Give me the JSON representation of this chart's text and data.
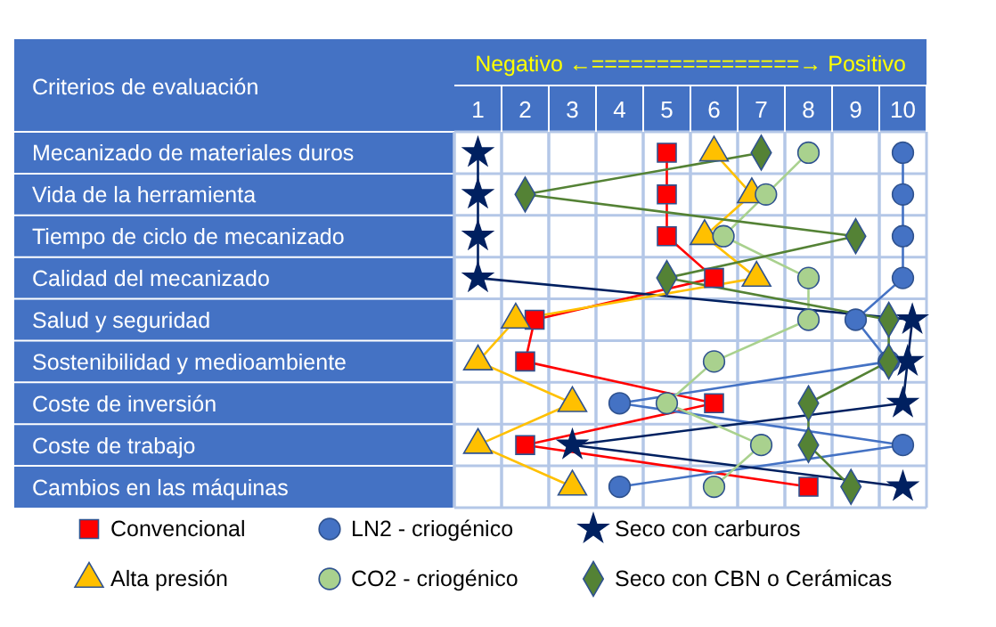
{
  "chart_data": {
    "type": "line",
    "orientation": "horizontal",
    "ylabel": "Criterios de evaluación",
    "annotations": [
      "Negativo ←================→ Positivo"
    ],
    "categories": [
      "Mecanizado de materiales duros",
      "Vida de la herramienta",
      "Tiempo de ciclo de mecanizado",
      "Calidad del mecanizado",
      "Salud y seguridad",
      "Sostenibilidad y medioambiente",
      "Coste de inversión",
      "Coste de trabajo",
      "Cambios en las máquinas"
    ],
    "xlim": [
      0.5,
      10.5
    ],
    "xticks": [
      1,
      2,
      3,
      4,
      5,
      6,
      7,
      8,
      9,
      10
    ],
    "grid": true,
    "legend": "bottom",
    "series": [
      {
        "name": "Convencional",
        "color": "#ff0000",
        "marker": "square",
        "values": [
          5,
          5,
          5,
          6,
          2.2,
          2,
          6,
          2,
          8
        ]
      },
      {
        "name": "LN2 - criogénico",
        "color": "#4472c4",
        "marker": "circle",
        "values": [
          10,
          10,
          10,
          10,
          9,
          9.7,
          4,
          10,
          4
        ]
      },
      {
        "name": "Seco con carburos",
        "color": "#002060",
        "marker": "star",
        "values": [
          1,
          1,
          1,
          1,
          10.2,
          10.1,
          10,
          3,
          10
        ]
      },
      {
        "name": "Alta presión",
        "color": "#ffc000",
        "marker": "triangle",
        "values": [
          6,
          6.8,
          5.8,
          6.9,
          1.8,
          1,
          3,
          1,
          3
        ]
      },
      {
        "name": "CO2 - criogénico",
        "color": "#a9d18e",
        "marker": "circle",
        "values": [
          8,
          7.1,
          6.2,
          8,
          8,
          6,
          5,
          7,
          6
        ]
      },
      {
        "name": "Seco con CBN o Cerámicas",
        "color": "#548235",
        "marker": "diamond",
        "values": [
          7,
          2,
          9,
          5,
          9.7,
          9.7,
          8,
          8,
          8.9
        ]
      }
    ]
  }
}
